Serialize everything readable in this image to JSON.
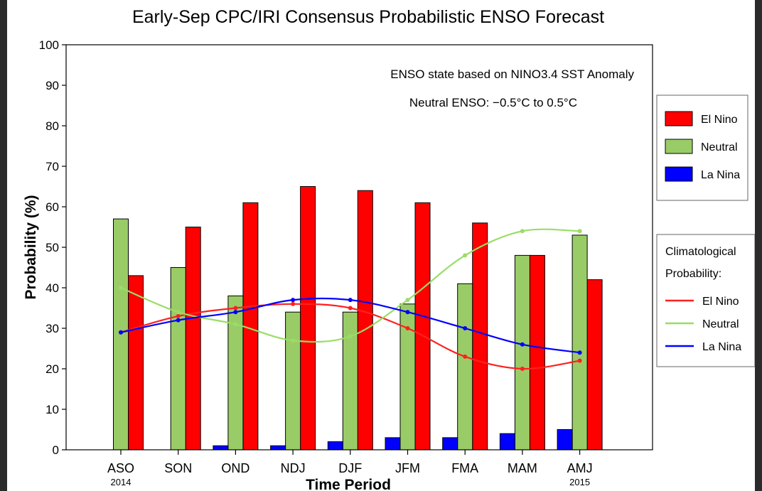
{
  "chart_data": {
    "type": "bar",
    "title": "Early-Sep CPC/IRI Consensus Probabilistic ENSO Forecast",
    "xlabel": "Time Period",
    "ylabel": "Probability (%)",
    "ylim": [
      0,
      100
    ],
    "yticks": [
      0,
      10,
      20,
      30,
      40,
      50,
      60,
      70,
      80,
      90,
      100
    ],
    "categories": [
      "ASO",
      "SON",
      "OND",
      "NDJ",
      "DJF",
      "JFM",
      "FMA",
      "MAM",
      "AMJ"
    ],
    "category_sublabels": [
      "2014",
      "",
      "",
      "",
      "",
      "",
      "",
      "",
      "2015"
    ],
    "annotations": [
      "ENSO state based on NINO3.4 SST Anomaly",
      "Neutral ENSO: −0.5°C to 0.5°C"
    ],
    "series": [
      {
        "name": "El Nino",
        "color": "#ff0000",
        "values": [
          43,
          55,
          61,
          65,
          64,
          61,
          56,
          48,
          42
        ]
      },
      {
        "name": "Neutral",
        "color": "#99cc66",
        "values": [
          57,
          45,
          38,
          34,
          34,
          36,
          41,
          48,
          53
        ]
      },
      {
        "name": "La Nina",
        "color": "#0000ff",
        "values": [
          0,
          0,
          1,
          1,
          2,
          3,
          3,
          4,
          5
        ]
      }
    ],
    "climatology_title": [
      "Climatological",
      "Probability:"
    ],
    "climatology": [
      {
        "name": "El Nino",
        "color": "#ff2020",
        "values": [
          29,
          33,
          35,
          36,
          35,
          30,
          23,
          20,
          22
        ]
      },
      {
        "name": "Neutral",
        "color": "#99dd66",
        "values": [
          40,
          34,
          31,
          27,
          28,
          37,
          48,
          54,
          54
        ]
      },
      {
        "name": "La Nina",
        "color": "#0000ff",
        "values": [
          29,
          32,
          34,
          37,
          37,
          34,
          30,
          26,
          24
        ]
      }
    ],
    "grid": false,
    "legend_placement": "right"
  }
}
